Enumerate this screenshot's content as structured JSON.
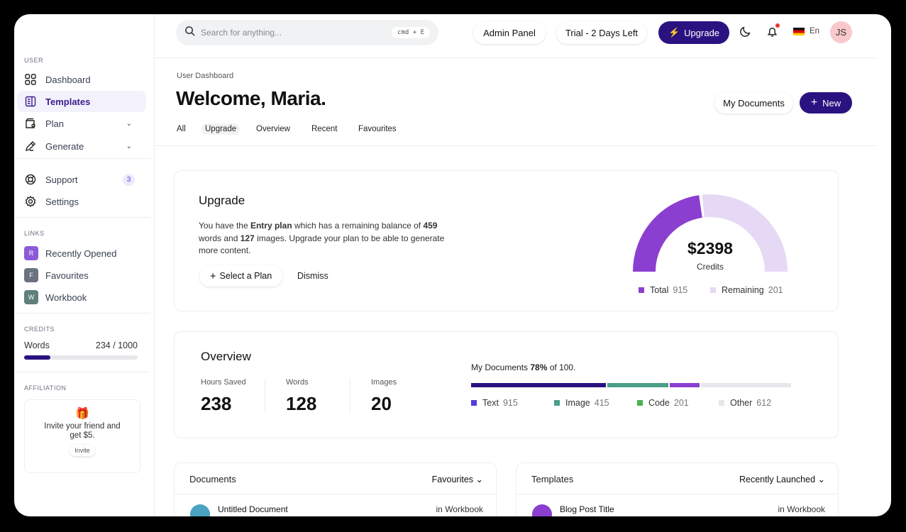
{
  "sidebar": {
    "user_section": "USER",
    "items": [
      {
        "label": "Dashboard"
      },
      {
        "label": "Templates"
      },
      {
        "label": "Plan"
      },
      {
        "label": "Generate"
      },
      {
        "label": "Support",
        "badge": "3"
      },
      {
        "label": "Settings"
      }
    ],
    "links_section": "LINKS",
    "links": [
      {
        "letter": "R",
        "label": "Recently Opened",
        "color": "#8b5cd6"
      },
      {
        "letter": "F",
        "label": "Favourites",
        "color": "#6b7280"
      },
      {
        "letter": "W",
        "label": "Workbook",
        "color": "#5f7f7a"
      }
    ],
    "credits_section": "CREDITS",
    "credits_label": "Words",
    "credits_value": "234 / 1000",
    "credits_fraction": 0.234,
    "affiliation_section": "AFFILIATION",
    "affiliation_text": "Invite your friend and get $5.",
    "invite_label": "Invite"
  },
  "header": {
    "search_placeholder": "Search for anything...",
    "shortcut": "cmd + E",
    "admin": "Admin Panel",
    "trial": "Trial - 2 Days Left",
    "upgrade": "Upgrade",
    "lang": "En",
    "avatar": "JS"
  },
  "page": {
    "breadcrumb": "User Dashboard",
    "title": "Welcome, Maria.",
    "my_documents": "My Documents",
    "new": "New",
    "tabs": [
      "All",
      "Upgrade",
      "Overview",
      "Recent",
      "Favourites"
    ],
    "active_tab": "Upgrade"
  },
  "upgrade": {
    "title": "Upgrade",
    "t1": "You have the ",
    "plan": "Entry plan",
    "t2": " which has a remaining balance of ",
    "words": "459",
    "t3": " words and ",
    "images": "127",
    "t4": " images. Upgrade your plan to be able to generate more content.",
    "select": "Select a Plan",
    "dismiss": "Dismiss",
    "amount": "$2398",
    "amount_label": "Credits",
    "legend": [
      {
        "label": "Total",
        "value": "915",
        "color": "#8b3fd0"
      },
      {
        "label": "Remaining",
        "value": "201",
        "color": "#e6d9f5"
      }
    ]
  },
  "overview": {
    "title": "Overview",
    "stats": [
      {
        "label": "Hours Saved",
        "value": "238"
      },
      {
        "label": "Words",
        "value": "128"
      },
      {
        "label": "Images",
        "value": "20"
      }
    ],
    "docs_prefix": "My Documents ",
    "docs_pct": "78%",
    "docs_suffix": " of 100.",
    "segments": [
      {
        "label": "Text",
        "value": "915",
        "color": "#2a1280",
        "bar": "#2a1280",
        "legend": "#4f3fe0"
      },
      {
        "label": "Image",
        "value": "415",
        "color": "#4a9e8a"
      },
      {
        "label": "Code",
        "value": "201",
        "color": "#8b3fd0",
        "legend": "#4caf50"
      },
      {
        "label": "Other",
        "value": "612",
        "color": "#e5e7eb"
      }
    ]
  },
  "documents": {
    "title": "Documents",
    "filter": "Favourites",
    "row_title": "Untitled Document",
    "row_meta": "in Workbook"
  },
  "templates": {
    "title": "Templates",
    "filter": "Recently Launched",
    "row_title": "Blog Post Title",
    "row_meta": "in Workbook"
  }
}
